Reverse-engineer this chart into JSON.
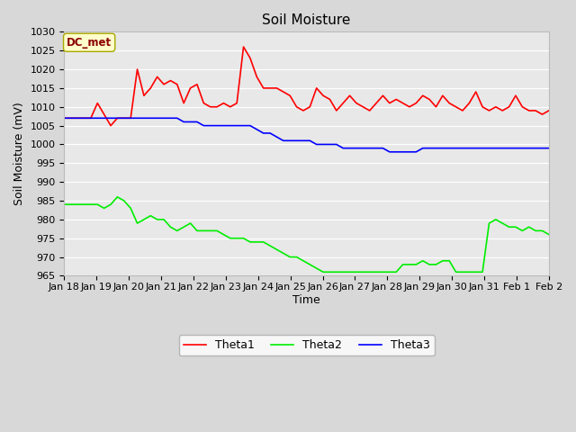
{
  "title": "Soil Moisture",
  "xlabel": "Time",
  "ylabel": "Soil Moisture (mV)",
  "ylim": [
    965,
    1030
  ],
  "annotation_text": "DC_met",
  "annotation_bg": "#ffffcc",
  "annotation_border": "#aaa800",
  "annotation_text_color": "#8b0000",
  "fig_bg": "#d8d8d8",
  "plot_bg": "#e8e8e8",
  "grid_color": "white",
  "theta1_color": "red",
  "theta2_color": "#00ee00",
  "theta3_color": "blue",
  "x_tick_labels": [
    "Jan 18",
    "Jan 19",
    "Jan 20",
    "Jan 21",
    "Jan 22",
    "Jan 23",
    "Jan 24",
    "Jan 25",
    "Jan 26",
    "Jan 27",
    "Jan 28",
    "Jan 29",
    "Jan 30",
    "Jan 31",
    "Feb 1",
    "Feb 2"
  ],
  "theta1": [
    1007,
    1007,
    1007,
    1007,
    1007,
    1011,
    1008,
    1005,
    1007,
    1007,
    1007,
    1020,
    1013,
    1015,
    1018,
    1016,
    1017,
    1016,
    1011,
    1015,
    1016,
    1011,
    1010,
    1010,
    1011,
    1010,
    1011,
    1026,
    1023,
    1018,
    1015,
    1015,
    1015,
    1014,
    1013,
    1010,
    1009,
    1010,
    1015,
    1013,
    1012,
    1009,
    1011,
    1013,
    1011,
    1010,
    1009,
    1011,
    1013,
    1011,
    1012,
    1011,
    1010,
    1011,
    1013,
    1012,
    1010,
    1013,
    1011,
    1010,
    1009,
    1011,
    1014,
    1010,
    1009,
    1010,
    1009,
    1010,
    1013,
    1010,
    1009,
    1009,
    1008,
    1009
  ],
  "theta2": [
    984,
    984,
    984,
    984,
    984,
    984,
    983,
    984,
    986,
    985,
    983,
    979,
    980,
    981,
    980,
    980,
    978,
    977,
    978,
    979,
    977,
    977,
    977,
    977,
    976,
    975,
    975,
    975,
    974,
    974,
    974,
    973,
    972,
    971,
    970,
    970,
    969,
    968,
    967,
    966,
    966,
    966,
    966,
    966,
    966,
    966,
    966,
    966,
    966,
    966,
    966,
    968,
    968,
    968,
    969,
    968,
    968,
    969,
    969,
    966,
    966,
    966,
    966,
    966,
    979,
    980,
    979,
    978,
    978,
    977,
    978,
    977,
    977,
    976
  ],
  "theta3": [
    1007,
    1007,
    1007,
    1007,
    1007,
    1007,
    1007,
    1007,
    1007,
    1007,
    1007,
    1007,
    1007,
    1007,
    1007,
    1007,
    1007,
    1007,
    1006,
    1006,
    1006,
    1005,
    1005,
    1005,
    1005,
    1005,
    1005,
    1005,
    1005,
    1004,
    1003,
    1003,
    1002,
    1001,
    1001,
    1001,
    1001,
    1001,
    1000,
    1000,
    1000,
    1000,
    999,
    999,
    999,
    999,
    999,
    999,
    999,
    998,
    998,
    998,
    998,
    998,
    999,
    999,
    999,
    999,
    999,
    999,
    999,
    999,
    999,
    999,
    999,
    999,
    999,
    999,
    999,
    999,
    999,
    999,
    999,
    999
  ]
}
